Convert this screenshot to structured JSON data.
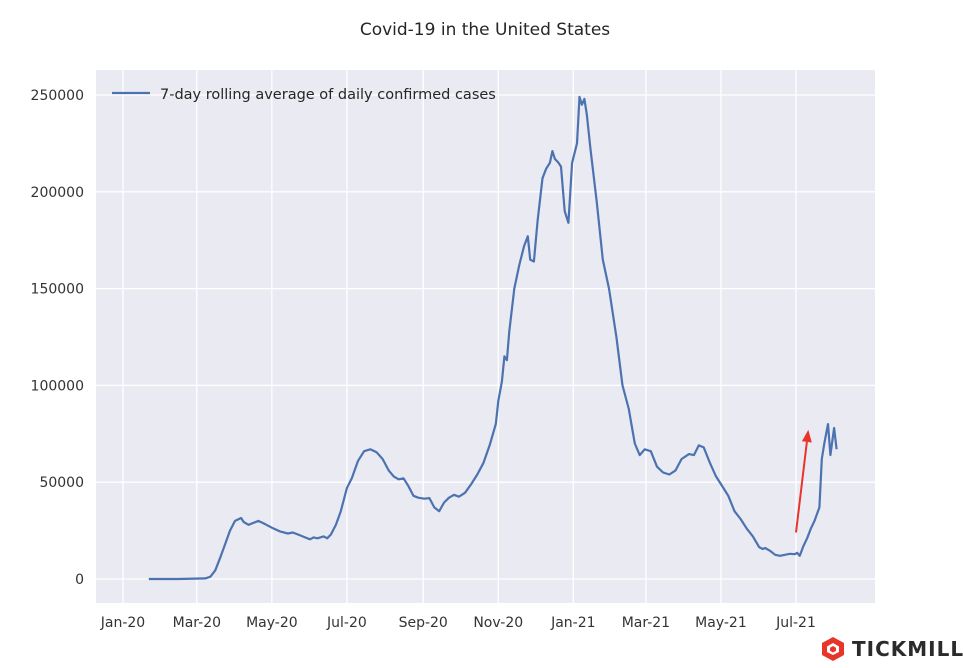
{
  "chart_data": {
    "type": "line",
    "title": "Covid-19 in the United States",
    "xlabel": "",
    "ylabel": "",
    "x_ticks": [
      "Jan-20",
      "Mar-20",
      "May-20",
      "Jul-20",
      "Sep-20",
      "Nov-20",
      "Jan-21",
      "Mar-21",
      "May-21",
      "Jul-21"
    ],
    "y_ticks": [
      0,
      50000,
      100000,
      150000,
      200000,
      250000
    ],
    "ylim": [
      -12000,
      262000
    ],
    "grid": true,
    "legend_position": "top-left",
    "series": [
      {
        "name": "7-day rolling average of daily confirmed cases",
        "color": "#4c72b0",
        "points": [
          [
            "2020-01-22",
            0
          ],
          [
            "2020-02-15",
            0
          ],
          [
            "2020-03-08",
            300
          ],
          [
            "2020-03-12",
            1200
          ],
          [
            "2020-03-16",
            4500
          ],
          [
            "2020-03-20",
            11000
          ],
          [
            "2020-03-24",
            18000
          ],
          [
            "2020-03-28",
            25000
          ],
          [
            "2020-04-01",
            30000
          ],
          [
            "2020-04-06",
            31500
          ],
          [
            "2020-04-08",
            29500
          ],
          [
            "2020-04-12",
            28000
          ],
          [
            "2020-04-16",
            29000
          ],
          [
            "2020-04-20",
            30000
          ],
          [
            "2020-04-25",
            28500
          ],
          [
            "2020-05-01",
            26500
          ],
          [
            "2020-05-08",
            24500
          ],
          [
            "2020-05-14",
            23500
          ],
          [
            "2020-05-18",
            24000
          ],
          [
            "2020-05-24",
            22500
          ],
          [
            "2020-05-28",
            21500
          ],
          [
            "2020-06-01",
            20500
          ],
          [
            "2020-06-04",
            21500
          ],
          [
            "2020-06-07",
            21000
          ],
          [
            "2020-06-12",
            22000
          ],
          [
            "2020-06-15",
            21000
          ],
          [
            "2020-06-18",
            23000
          ],
          [
            "2020-06-22",
            28000
          ],
          [
            "2020-06-26",
            35000
          ],
          [
            "2020-07-01",
            47000
          ],
          [
            "2020-07-05",
            52000
          ],
          [
            "2020-07-10",
            61000
          ],
          [
            "2020-07-15",
            66000
          ],
          [
            "2020-07-20",
            67000
          ],
          [
            "2020-07-25",
            65500
          ],
          [
            "2020-07-30",
            62000
          ],
          [
            "2020-08-04",
            56000
          ],
          [
            "2020-08-08",
            53000
          ],
          [
            "2020-08-12",
            51500
          ],
          [
            "2020-08-16",
            52000
          ],
          [
            "2020-08-20",
            48000
          ],
          [
            "2020-08-24",
            43000
          ],
          [
            "2020-08-28",
            42000
          ],
          [
            "2020-09-02",
            41500
          ],
          [
            "2020-09-06",
            41800
          ],
          [
            "2020-09-10",
            37000
          ],
          [
            "2020-09-14",
            35000
          ],
          [
            "2020-09-18",
            39500
          ],
          [
            "2020-09-22",
            42000
          ],
          [
            "2020-09-26",
            43500
          ],
          [
            "2020-09-30",
            42500
          ],
          [
            "2020-10-05",
            44500
          ],
          [
            "2020-10-10",
            49000
          ],
          [
            "2020-10-15",
            54000
          ],
          [
            "2020-10-20",
            60000
          ],
          [
            "2020-10-25",
            69000
          ],
          [
            "2020-10-30",
            80000
          ],
          [
            "2020-11-01",
            92000
          ],
          [
            "2020-11-04",
            102000
          ],
          [
            "2020-11-06",
            115000
          ],
          [
            "2020-11-08",
            113000
          ],
          [
            "2020-11-10",
            128000
          ],
          [
            "2020-11-14",
            150000
          ],
          [
            "2020-11-18",
            162000
          ],
          [
            "2020-11-22",
            172000
          ],
          [
            "2020-11-25",
            177000
          ],
          [
            "2020-11-27",
            165000
          ],
          [
            "2020-11-30",
            164000
          ],
          [
            "2020-12-03",
            185000
          ],
          [
            "2020-12-07",
            207000
          ],
          [
            "2020-12-10",
            212000
          ],
          [
            "2020-12-13",
            215000
          ],
          [
            "2020-12-15",
            221000
          ],
          [
            "2020-12-17",
            217000
          ],
          [
            "2020-12-20",
            215000
          ],
          [
            "2020-12-22",
            213000
          ],
          [
            "2020-12-25",
            190000
          ],
          [
            "2020-12-28",
            184000
          ],
          [
            "2020-12-31",
            215000
          ],
          [
            "2021-01-04",
            225000
          ],
          [
            "2021-01-06",
            249000
          ],
          [
            "2021-01-08",
            245000
          ],
          [
            "2021-01-10",
            248000
          ],
          [
            "2021-01-12",
            240000
          ],
          [
            "2021-01-15",
            222000
          ],
          [
            "2021-01-20",
            195000
          ],
          [
            "2021-01-25",
            165000
          ],
          [
            "2021-01-30",
            150000
          ],
          [
            "2021-02-05",
            125000
          ],
          [
            "2021-02-10",
            100000
          ],
          [
            "2021-02-15",
            88000
          ],
          [
            "2021-02-20",
            70000
          ],
          [
            "2021-02-24",
            64000
          ],
          [
            "2021-02-28",
            67000
          ],
          [
            "2021-03-05",
            66000
          ],
          [
            "2021-03-10",
            58000
          ],
          [
            "2021-03-15",
            55000
          ],
          [
            "2021-03-20",
            54000
          ],
          [
            "2021-03-25",
            56000
          ],
          [
            "2021-03-30",
            62000
          ],
          [
            "2021-04-05",
            64500
          ],
          [
            "2021-04-09",
            64000
          ],
          [
            "2021-04-13",
            69000
          ],
          [
            "2021-04-17",
            68000
          ],
          [
            "2021-04-22",
            60000
          ],
          [
            "2021-04-27",
            53000
          ],
          [
            "2021-05-02",
            48000
          ],
          [
            "2021-05-07",
            43000
          ],
          [
            "2021-05-12",
            35000
          ],
          [
            "2021-05-17",
            31000
          ],
          [
            "2021-05-22",
            26000
          ],
          [
            "2021-05-27",
            22000
          ],
          [
            "2021-06-01",
            16500
          ],
          [
            "2021-06-04",
            15500
          ],
          [
            "2021-06-06",
            16000
          ],
          [
            "2021-06-10",
            14500
          ],
          [
            "2021-06-14",
            12500
          ],
          [
            "2021-06-18",
            12000
          ],
          [
            "2021-06-22",
            12500
          ],
          [
            "2021-06-26",
            13000
          ],
          [
            "2021-06-30",
            12800
          ],
          [
            "2021-07-02",
            13500
          ],
          [
            "2021-07-04",
            12000
          ],
          [
            "2021-07-07",
            17000
          ],
          [
            "2021-07-10",
            21000
          ],
          [
            "2021-07-13",
            26000
          ],
          [
            "2021-07-16",
            30000
          ],
          [
            "2021-07-20",
            37000
          ],
          [
            "2021-07-22",
            62000
          ],
          [
            "2021-07-24",
            70000
          ],
          [
            "2021-07-27",
            80000
          ],
          [
            "2021-07-29",
            64000
          ],
          [
            "2021-08-01",
            78000
          ],
          [
            "2021-08-03",
            67000
          ]
        ]
      }
    ],
    "annotations": [
      {
        "type": "arrow",
        "color": "#e8352a",
        "from": [
          "2021-07-01",
          24000
        ],
        "to": [
          "2021-07-11",
          77000
        ]
      }
    ]
  },
  "branding": {
    "logo_text": "TICKMILL",
    "logo_color": "#e8352a"
  }
}
